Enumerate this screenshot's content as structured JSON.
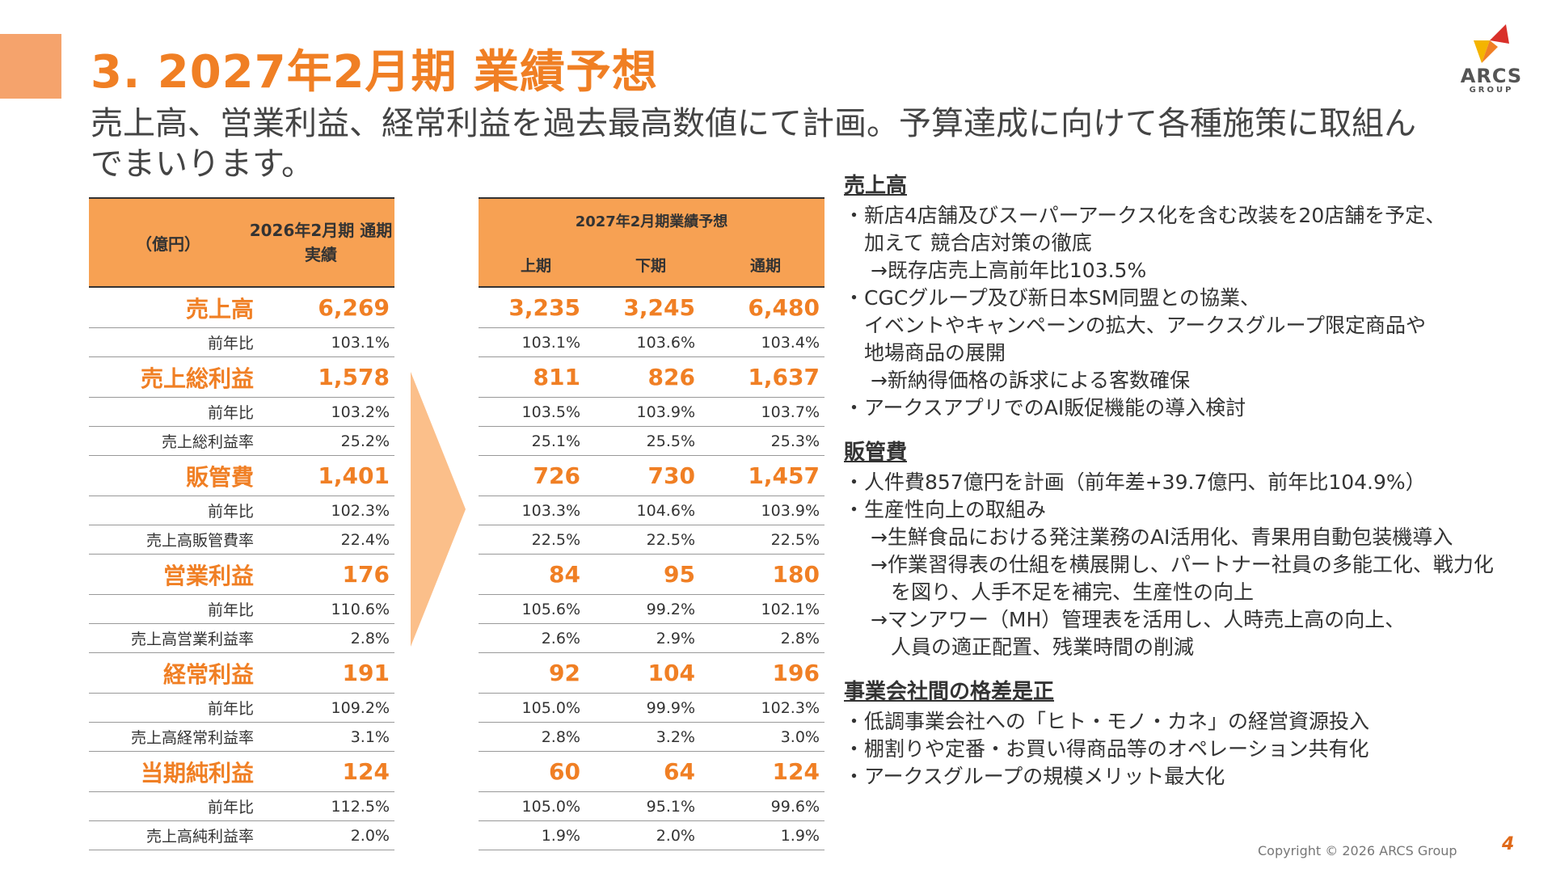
{
  "title": "3. 2027年2月期 業績予想",
  "subtitle": "売上高、営業利益、経常利益を過去最高数値にて計画。予算達成に向けて各種施策に取組んでまいります。",
  "logo": {
    "text": "ARCS",
    "sub": "GROUP",
    "colors": {
      "orange": "#f07f24",
      "red": "#d9302a",
      "yellow": "#f4b400"
    }
  },
  "left_table": {
    "unit": "（億円）",
    "header": "2026年2月期 通期実績",
    "rows": [
      {
        "label": "売上高",
        "value": "6,269",
        "type": "main"
      },
      {
        "label": "前年比",
        "value": "103.1%",
        "type": "sub"
      },
      {
        "label": "売上総利益",
        "value": "1,578",
        "type": "main"
      },
      {
        "label": "前年比",
        "value": "103.2%",
        "type": "sub"
      },
      {
        "label": "売上総利益率",
        "value": "25.2%",
        "type": "sub"
      },
      {
        "label": "販管費",
        "value": "1,401",
        "type": "main"
      },
      {
        "label": "前年比",
        "value": "102.3%",
        "type": "sub"
      },
      {
        "label": "売上高販管費率",
        "value": "22.4%",
        "type": "sub"
      },
      {
        "label": "営業利益",
        "value": "176",
        "type": "main"
      },
      {
        "label": "前年比",
        "value": "110.6%",
        "type": "sub"
      },
      {
        "label": "売上高営業利益率",
        "value": "2.8%",
        "type": "sub"
      },
      {
        "label": "経常利益",
        "value": "191",
        "type": "main"
      },
      {
        "label": "前年比",
        "value": "109.2%",
        "type": "sub"
      },
      {
        "label": "売上高経常利益率",
        "value": "3.1%",
        "type": "sub"
      },
      {
        "label": "当期純利益",
        "value": "124",
        "type": "main"
      },
      {
        "label": "前年比",
        "value": "112.5%",
        "type": "sub"
      },
      {
        "label": "売上高純利益率",
        "value": "2.0%",
        "type": "sub"
      }
    ]
  },
  "right_table": {
    "header": "2027年2月期業績予想",
    "columns": [
      "上期",
      "下期",
      "通期"
    ],
    "rows": [
      {
        "type": "main",
        "values": [
          "3,235",
          "3,245",
          "6,480"
        ]
      },
      {
        "type": "sub",
        "values": [
          "103.1%",
          "103.6%",
          "103.4%"
        ]
      },
      {
        "type": "main",
        "values": [
          "811",
          "826",
          "1,637"
        ]
      },
      {
        "type": "sub",
        "values": [
          "103.5%",
          "103.9%",
          "103.7%"
        ]
      },
      {
        "type": "sub",
        "values": [
          "25.1%",
          "25.5%",
          "25.3%"
        ]
      },
      {
        "type": "main",
        "values": [
          "726",
          "730",
          "1,457"
        ]
      },
      {
        "type": "sub",
        "values": [
          "103.3%",
          "104.6%",
          "103.9%"
        ]
      },
      {
        "type": "sub",
        "values": [
          "22.5%",
          "22.5%",
          "22.5%"
        ]
      },
      {
        "type": "main",
        "values": [
          "84",
          "95",
          "180"
        ]
      },
      {
        "type": "sub",
        "values": [
          "105.6%",
          "99.2%",
          "102.1%"
        ]
      },
      {
        "type": "sub",
        "values": [
          "2.6%",
          "2.9%",
          "2.8%"
        ]
      },
      {
        "type": "main",
        "values": [
          "92",
          "104",
          "196"
        ]
      },
      {
        "type": "sub",
        "values": [
          "105.0%",
          "99.9%",
          "102.3%"
        ]
      },
      {
        "type": "sub",
        "values": [
          "2.8%",
          "3.2%",
          "3.0%"
        ]
      },
      {
        "type": "main",
        "values": [
          "60",
          "64",
          "124"
        ]
      },
      {
        "type": "sub",
        "values": [
          "105.0%",
          "95.1%",
          "99.6%"
        ]
      },
      {
        "type": "sub",
        "values": [
          "1.9%",
          "2.0%",
          "1.9%"
        ]
      }
    ]
  },
  "notes": [
    {
      "heading": "売上高",
      "lines": [
        "・新店4店舗及びスーパーアークス化を含む改装を20店舗を予定、",
        "　加えて 競合店対策の徹底",
        "　 →既存店売上高前年比103.5%",
        "・CGCグループ及び新日本SM同盟との協業、",
        "　イベントやキャンペーンの拡大、アークスグループ限定商品や",
        "　地場商品の展開",
        "　 →新納得価格の訴求による客数確保",
        "・アークスアプリでのAI販促機能の導入検討"
      ]
    },
    {
      "heading": "販管費",
      "lines": [
        "・人件費857億円を計画（前年差+39.7億円、前年比104.9%）",
        "・生産性向上の取組み",
        "　 →生鮮食品における発注業務のAI活用化、青果用自動包装機導入",
        "　 →作業習得表の仕組を横展開し、パートナー社員の多能工化、戦力化",
        "　　 を図り、人手不足を補完、生産性の向上",
        "　 →マンアワー（MH）管理表を活用し、人時売上高の向上、",
        "　　 人員の適正配置、残業時間の削減"
      ]
    },
    {
      "heading": "事業会社間の格差是正",
      "lines": [
        "・低調事業会社への「ヒト・モノ・カネ」の経営資源投入",
        "・棚割りや定番・お買い得商品等のオペレーション共有化",
        "・アークスグループの規模メリット最大化"
      ]
    }
  ],
  "footer": {
    "copyright": "Copyright © 2026 ARCS Group",
    "page": "4"
  }
}
